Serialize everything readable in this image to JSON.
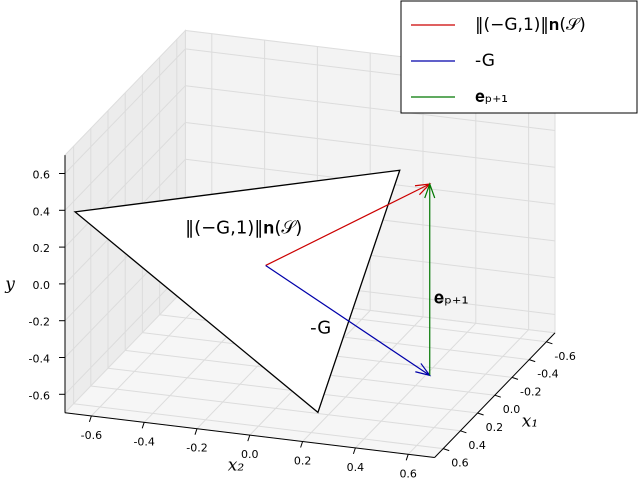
{
  "chart_data": {
    "type": "vector3d",
    "axis_labels": {
      "x1": "x₁",
      "x2": "x₂",
      "y": "y"
    },
    "x1lim": [
      -0.7,
      0.7
    ],
    "x2lim": [
      -0.7,
      0.7
    ],
    "ylim": [
      -0.7,
      0.7
    ],
    "x1ticks": [
      -0.6,
      -0.4,
      -0.2,
      {
        "value": 0,
        "label": "0.0"
      },
      0.2,
      0.4,
      0.6
    ],
    "x2ticks": [
      -0.6,
      -0.4,
      -0.2,
      {
        "value": 0,
        "label": "0.0"
      },
      0.2,
      0.4,
      0.6
    ],
    "yticks": [
      -0.6,
      -0.4,
      -0.2,
      {
        "value": 0,
        "label": "0.0"
      },
      0.2,
      0.4,
      0.6
    ],
    "grid": true,
    "legend": "upper right",
    "polygon": {
      "color": "#000000",
      "fill": "#ffffff",
      "points": [
        [
          0,
          -0.89,
          0.02
        ],
        [
          0,
          0.34,
          0.46
        ],
        [
          0,
          0.03,
          -0.91
        ]
      ]
    },
    "vectors": [
      {
        "name": "‖(−G,1)‖𝐧(𝒮)",
        "label": "‖(−G,1)‖𝐧(𝒮)",
        "color": "#cc0000",
        "start": [
          0.27,
          -0.08,
          0
        ],
        "end": [
          0.25,
          0.535,
          0.54
        ]
      },
      {
        "name": "-G",
        "label": "-G",
        "color": "#0000aa",
        "start": [
          0.27,
          -0.08,
          0
        ],
        "end": [
          0.25,
          0.535,
          -0.5
        ]
      },
      {
        "name": "𝐞ₚ₊₁",
        "label": "𝐞ₚ₊₁",
        "color": "#007700",
        "start": [
          0.25,
          0.535,
          -0.5
        ],
        "end": [
          0.25,
          0.535,
          0.54
        ]
      }
    ]
  }
}
